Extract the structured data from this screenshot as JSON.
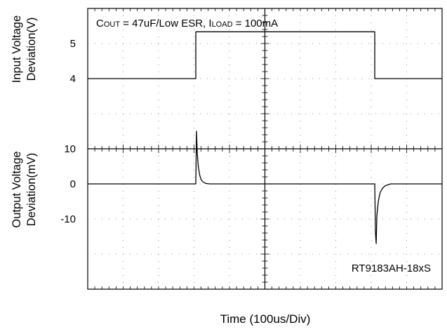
{
  "chart_data": {
    "type": "line",
    "annotation": {
      "prefix1": "C",
      "sub1": "OUT",
      "mid": " = 47uF/Low ESR, I",
      "sub2": "LOAD",
      "suffix": " = 100mA"
    },
    "part_label": "RT9183AH-18xS",
    "xlabel": "Time  (100us/Div)",
    "x_divisions": 10,
    "y_divisions": 8,
    "top_panel": {
      "ylabel_line1": "Input Voltage",
      "ylabel_line2": "Deviation(V)",
      "ticks": [
        "5",
        "4"
      ],
      "ylim": [
        2.5,
        5.5
      ],
      "series": {
        "x": [
          0,
          3.05,
          3.05,
          8.1,
          8.1,
          10
        ],
        "y": [
          4,
          4,
          5,
          5,
          4,
          4
        ]
      }
    },
    "bottom_panel": {
      "ylabel_line1": "Output Voltage",
      "ylabel_line2": "Deviation(mV)",
      "ticks": [
        "10",
        "0",
        "-10"
      ],
      "ylim": [
        -30,
        10
      ],
      "series": {
        "x": [
          0,
          3.05,
          3.07,
          3.09,
          3.12,
          3.16,
          3.2,
          3.25,
          3.3,
          3.35,
          3.45,
          3.6,
          8.1,
          8.12,
          8.14,
          8.16,
          8.2,
          8.25,
          8.32,
          8.4,
          8.55,
          10
        ],
        "y": [
          0,
          0,
          15,
          9,
          5,
          2.5,
          1.2,
          0.6,
          0.3,
          0.1,
          0.0,
          0.0,
          0.0,
          -14,
          -17,
          -9,
          -5,
          -2.5,
          -1.2,
          -0.5,
          0.0,
          0.0
        ]
      }
    }
  }
}
